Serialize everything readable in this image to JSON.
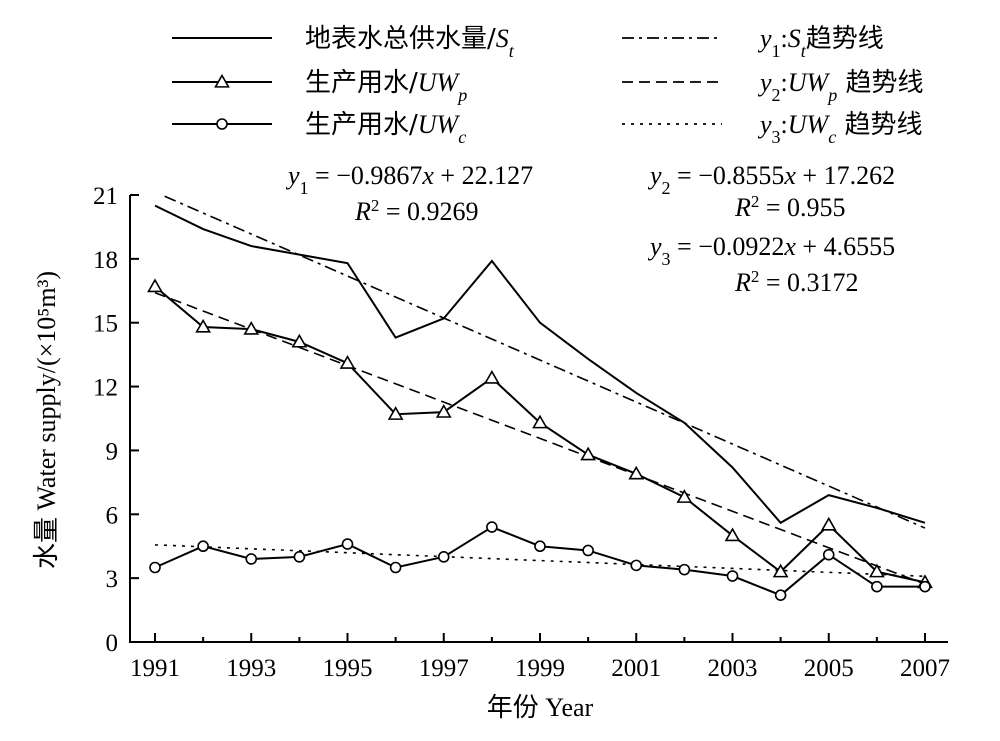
{
  "chart_data": {
    "type": "line",
    "xlabel": "年份 Year",
    "ylabel": "水量 Water supply/(×10⁵m³)",
    "xlim": [
      1991,
      2007
    ],
    "ylim": [
      0,
      21
    ],
    "x_ticks": [
      "1991",
      "1993",
      "1995",
      "1997",
      "1999",
      "2001",
      "2003",
      "2005",
      "2007"
    ],
    "y_ticks": [
      "0",
      "3",
      "6",
      "9",
      "12",
      "15",
      "18",
      "21"
    ],
    "x": [
      1991,
      1992,
      1993,
      1994,
      1995,
      1996,
      1997,
      1998,
      1999,
      2000,
      2001,
      2002,
      2003,
      2004,
      2005,
      2006,
      2007
    ],
    "series": [
      {
        "name": "地表水总供水量/S_t",
        "legend_label": "地表水总供水量/",
        "legend_sym": "S",
        "legend_sub": "t",
        "marker": "none",
        "values": [
          20.5,
          19.4,
          18.6,
          18.2,
          17.8,
          14.3,
          15.2,
          17.9,
          15.0,
          13.3,
          11.7,
          10.3,
          8.2,
          5.6,
          6.9,
          6.3,
          5.6
        ]
      },
      {
        "name": "生产用水/UW_p",
        "legend_label": "生产用水/",
        "legend_sym": "UW",
        "legend_sub": "p",
        "marker": "triangle",
        "values": [
          16.7,
          14.8,
          14.7,
          14.1,
          13.1,
          10.7,
          10.8,
          12.4,
          10.3,
          8.8,
          7.9,
          6.8,
          5.0,
          3.3,
          5.5,
          3.3,
          2.8
        ]
      },
      {
        "name": "生产用水/UW_c",
        "legend_label": "生产用水/",
        "legend_sym": "UW",
        "legend_sub": "c",
        "marker": "circle",
        "values": [
          3.5,
          4.5,
          3.9,
          4.0,
          4.6,
          3.5,
          4.0,
          5.4,
          4.5,
          4.3,
          3.6,
          3.4,
          3.1,
          2.2,
          4.1,
          2.6,
          2.6
        ]
      }
    ],
    "trendlines": [
      {
        "name": "y1:S_t趋势线",
        "legend_prefix": "y",
        "legend_index": "1",
        "legend_sym": "S",
        "legend_sub": "t",
        "legend_suffix": "趋势线",
        "dash": "dashdot",
        "slope": -0.9867,
        "intercept": 22.127,
        "equation": "= −0.9867x + 22.127",
        "r2": "= 0.9269"
      },
      {
        "name": "y2:UW_p趋势线",
        "legend_prefix": "y",
        "legend_index": "2",
        "legend_sym": "UW",
        "legend_sub": "p",
        "legend_suffix": " 趋势线",
        "dash": "dashed",
        "slope": -0.8555,
        "intercept": 17.262,
        "equation": "= −0.8555x + 17.262",
        "r2": "= 0.955"
      },
      {
        "name": "y3:UW_c趋势线",
        "legend_prefix": "y",
        "legend_index": "3",
        "legend_sym": "UW",
        "legend_sub": "c",
        "legend_suffix": " 趋势线",
        "dash": "dotted",
        "slope": -0.0922,
        "intercept": 4.6555,
        "equation": "= −0.0922x + 4.6555",
        "r2": "= 0.3172"
      }
    ],
    "legend_position": "top",
    "grid": false
  }
}
